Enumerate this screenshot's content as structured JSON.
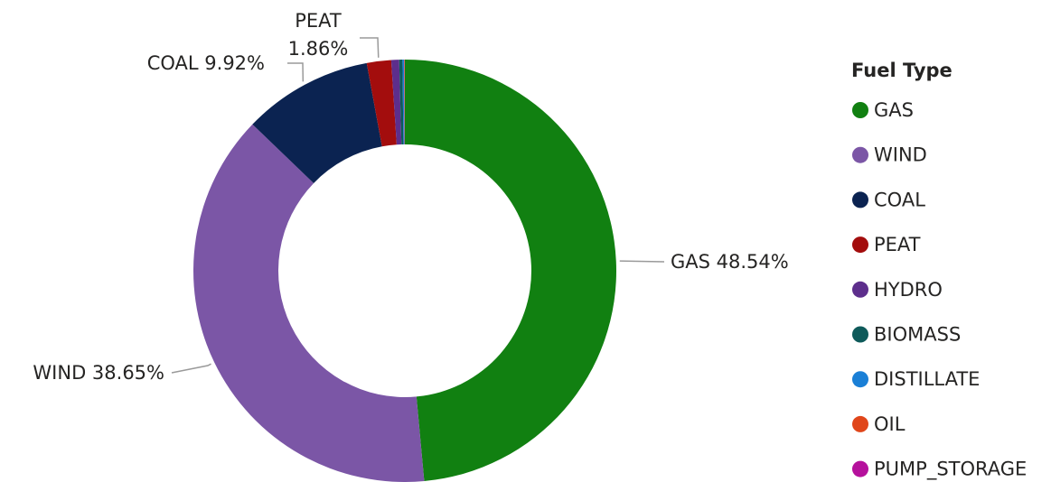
{
  "chart_data": {
    "type": "donut",
    "categories": [
      "GAS",
      "WIND",
      "COAL",
      "PEAT",
      "HYDRO",
      "BIOMASS",
      "DISTILLATE",
      "OIL",
      "PUMP_STORAGE"
    ],
    "values": [
      48.54,
      38.65,
      9.92,
      1.86,
      0.6,
      0.25,
      0.12,
      0.04,
      0.02
    ],
    "value_labels": [
      "GAS 48.54%",
      "WIND 38.65%",
      "COAL 9.92%",
      "PEAT 1.86%",
      null,
      null,
      null,
      null,
      null
    ],
    "colors": [
      "#118011",
      "#7b56a6",
      "#0b2351",
      "#a30d0d",
      "#5d2e8c",
      "#0e5a5a",
      "#1a7fd6",
      "#e0461a",
      "#b5119c"
    ],
    "legend_title": "Fuel Type",
    "legend_position": "right"
  }
}
